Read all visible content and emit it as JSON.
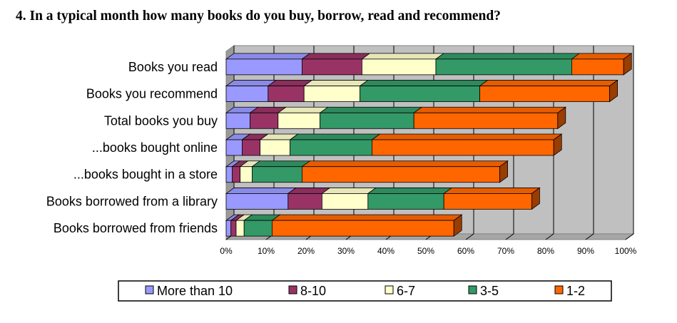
{
  "chart_data": {
    "type": "bar",
    "orientation": "horizontal",
    "stacked": true,
    "three_d": true,
    "title": "4. In a typical month how many books do you buy, borrow, read and recommend?",
    "xlabel": "",
    "ylabel": "",
    "xlim": [
      0,
      100
    ],
    "x_ticks": [
      "0%",
      "10%",
      "20%",
      "30%",
      "40%",
      "50%",
      "60%",
      "70%",
      "80%",
      "90%",
      "100%"
    ],
    "grid": true,
    "legend_position": "bottom",
    "categories": [
      "Books you read",
      "Books you recommend",
      "Total books you buy",
      "...books bought online",
      "...books bought in a store",
      "Books borrowed from a library",
      "Books borrowed from friends"
    ],
    "series": [
      {
        "name": "More than 10",
        "color": "#9999ff",
        "values": [
          19,
          10.5,
          6,
          4,
          1.5,
          15.5,
          1.2
        ]
      },
      {
        "name": "8-10",
        "color": "#993366",
        "values": [
          15,
          9,
          7,
          4.5,
          2,
          8.5,
          1.3
        ]
      },
      {
        "name": "6-7",
        "color": "#ffffcc",
        "values": [
          18.5,
          14,
          10.5,
          7.5,
          3,
          11.5,
          2
        ]
      },
      {
        "name": "3-5",
        "color": "#339966",
        "values": [
          34,
          30,
          23.5,
          20.5,
          12.5,
          19,
          7
        ]
      },
      {
        "name": "1-2",
        "color": "#ff6600",
        "values": [
          13,
          32.5,
          36,
          45.5,
          49.5,
          22,
          45.5
        ]
      }
    ]
  }
}
